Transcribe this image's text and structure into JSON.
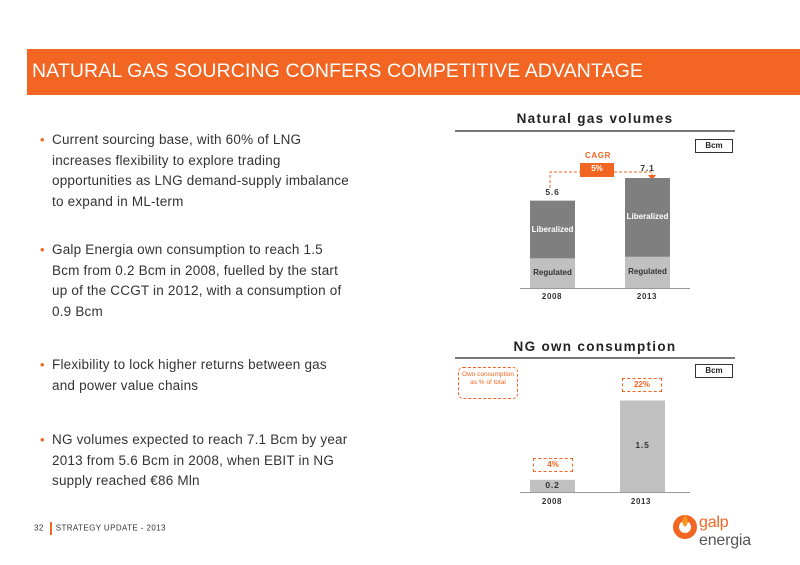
{
  "slide": {
    "title": "NATURAL GAS SOURCING CONFERS COMPETITIVE ADVANTAGE",
    "bullets": [
      "Current sourcing base, with 60% of LNG increases flexibility to explore trading opportunities as LNG demand-supply imbalance to expand in ML-term",
      "Galp Energia own consumption to reach 1.5 Bcm from 0.2 Bcm in 2008, fuelled by the start up of the CCGT in 2012, with a consumption of 0.9 Bcm",
      "Flexibility to lock higher returns between gas and power value chains",
      "NG volumes expected to reach 7.1 Bcm by year 2013 from 5.6 Bcm in 2008, when EBIT in NG supply reached €86 Mln"
    ],
    "footer": {
      "page": "32",
      "text": "STRATEGY UPDATE - 2013"
    },
    "logo": {
      "text_galp": "galp",
      "text_energia": "energia"
    },
    "colors": {
      "accent": "#f26522",
      "bar_dark": "#7f7f7f",
      "bar_light": "#c0c0c0"
    }
  },
  "chart_data": [
    {
      "type": "bar",
      "stacked": true,
      "title": "Natural gas volumes",
      "unit": "Bcm",
      "categories": [
        "2008",
        "2013"
      ],
      "series": [
        {
          "name": "Regulated",
          "values": [
            1.9,
            2.0
          ]
        },
        {
          "name": "Liberalized",
          "values": [
            3.7,
            5.1
          ]
        }
      ],
      "totals": [
        "5.6",
        "7.1"
      ],
      "annotation": {
        "label": "CAGR",
        "value": "5%"
      }
    },
    {
      "type": "bar",
      "title": "NG own consumption",
      "unit": "Bcm",
      "categories": [
        "2008",
        "2013"
      ],
      "values": [
        0.2,
        1.5
      ],
      "value_labels": [
        "0.2",
        "1.5"
      ],
      "share_labels": [
        "4%",
        "22%"
      ],
      "share_legend": "Own consumption as % of total"
    }
  ]
}
